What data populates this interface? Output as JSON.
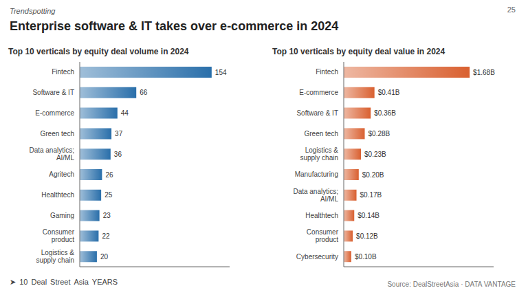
{
  "title": "Enterprise software & IT takes over e-commerce in 2024",
  "annotations": [
    "Trendspotting",
    "25",
    "Source: DealStreetAsia · DATA VANTAGE",
    "➤",
    "10",
    "Deal",
    "Street",
    "Asia",
    "YEARS"
  ],
  "chart_data": [
    {
      "type": "bar",
      "orientation": "horizontal",
      "title": "Top 10 verticals by equity deal volume in 2024",
      "categories": [
        "Fintech",
        "Software & IT",
        "E-commerce",
        "Green tech",
        "Data analytics;\nAI/ML",
        "Agritech",
        "Healthtech",
        "Gaming",
        "Consumer\nproduct",
        "Logistics &\nsupply chain"
      ],
      "values": [
        154,
        66,
        44,
        37,
        36,
        26,
        25,
        23,
        22,
        20
      ],
      "color": "#2a6faa",
      "xlim": [
        0,
        175
      ],
      "data_labels": true,
      "tick_labels": "y"
    },
    {
      "type": "bar",
      "orientation": "horizontal",
      "title": "Top 10 verticals by equity deal value in 2024",
      "categories": [
        "Fintech",
        "E-commerce",
        "Software & IT",
        "Green tech",
        "Logistics &\nsupply chain",
        "Manufacturing",
        "Data analytics;\nAI/ML",
        "Healthtech",
        "Consumer\nproduct",
        "Cybersecurity"
      ],
      "values": [
        1.68,
        0.41,
        0.36,
        0.28,
        0.23,
        0.2,
        0.17,
        0.14,
        0.12,
        0.1
      ],
      "value_labels": [
        "$1.68B",
        "$0.41B",
        "$0.36B",
        "$0.28B",
        "$0.23B",
        "$0.20B",
        "$0.17B",
        "$0.14B",
        "$0.12B",
        "$0.10B"
      ],
      "color": "#d96030",
      "xlim": [
        0,
        2.0
      ],
      "data_labels": true,
      "tick_labels": "y"
    }
  ]
}
